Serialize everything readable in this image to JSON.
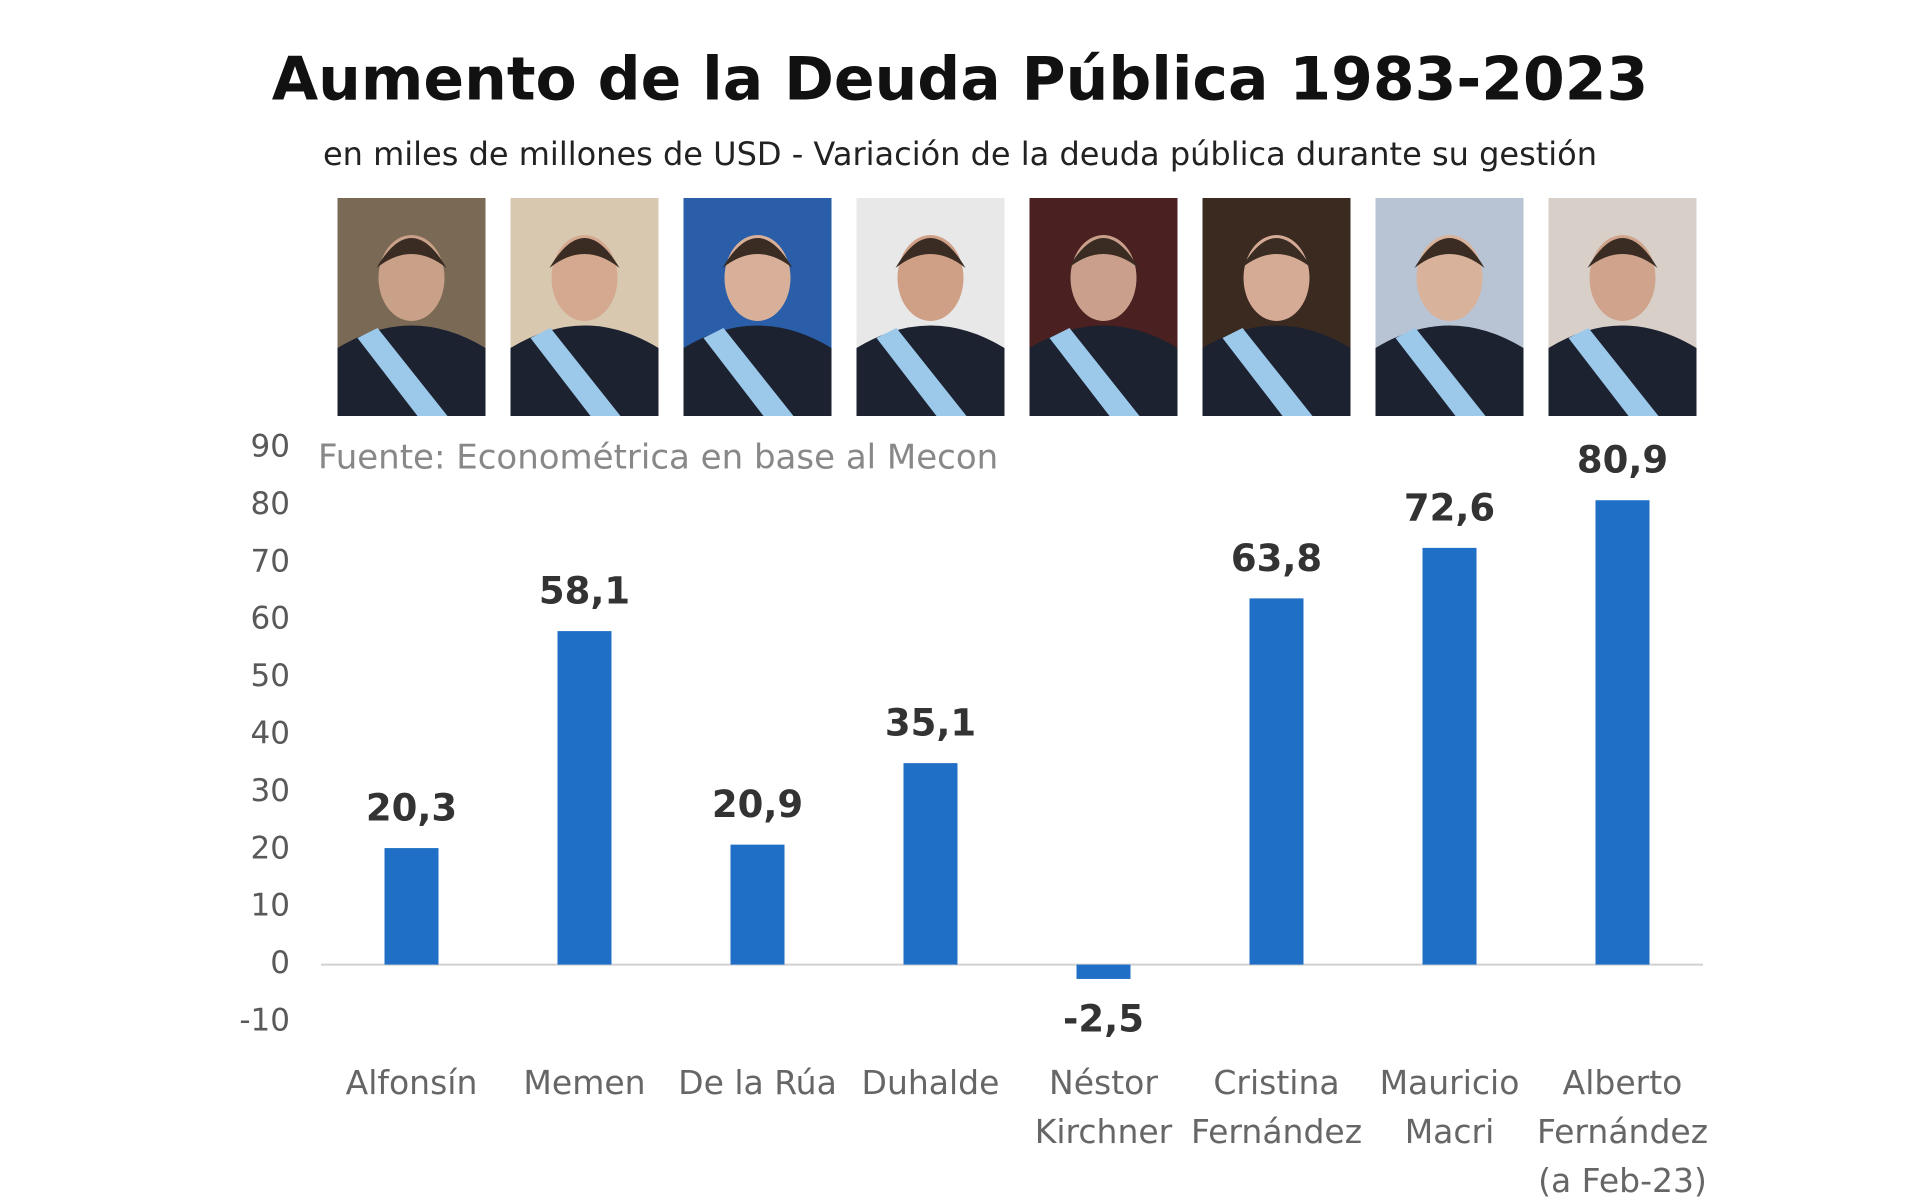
{
  "chart_data": {
    "type": "bar",
    "title": "Aumento de la Deuda Pública 1983-2023",
    "subtitle": "en miles de millones de USD - Variación de la deuda pública durante su gestión",
    "source": "Fuente: Econométrica en base al Mecon",
    "categories": [
      "Alfonsín",
      "Memen",
      "De la Rúa",
      "Duhalde",
      "Néstor Kirchner",
      "Cristina Fernández",
      "Mauricio Macri",
      "Alberto Fernández (a Feb-23)"
    ],
    "values": [
      20.3,
      58.1,
      20.9,
      35.1,
      -2.5,
      63.8,
      72.6,
      80.9
    ],
    "value_labels": [
      "20,3",
      "58,1",
      "20,9",
      "35,1",
      "-2,5",
      "63,8",
      "72,6",
      "80,9"
    ],
    "color": "#1f6fc6",
    "ylim": [
      -10,
      90
    ],
    "yticks": [
      -10,
      0,
      10,
      20,
      30,
      40,
      50,
      60,
      70,
      80,
      90
    ],
    "grid": false
  }
}
